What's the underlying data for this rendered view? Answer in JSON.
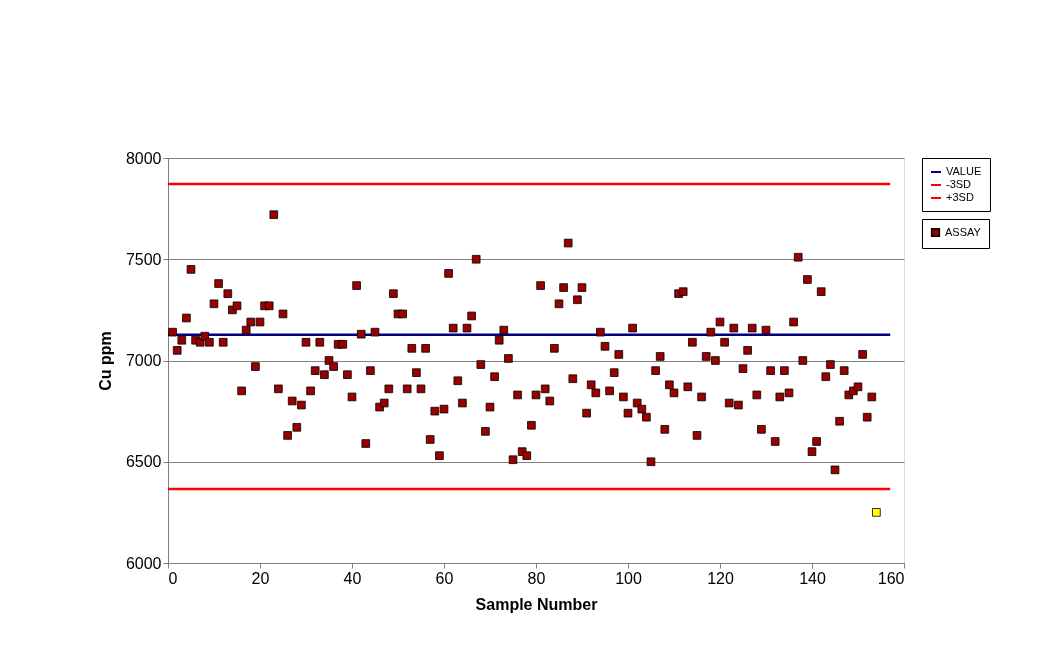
{
  "chart_data": {
    "type": "scatter",
    "xlabel": "Sample Number",
    "ylabel": "Cu ppm",
    "xlim": [
      0,
      160
    ],
    "xticks": [
      0,
      20,
      40,
      60,
      80,
      100,
      120,
      140,
      160
    ],
    "ylim": [
      6000,
      8000
    ],
    "yticks": [
      6000,
      6500,
      7000,
      7500,
      8000
    ],
    "grid": "y",
    "legend": "right",
    "series": [
      {
        "name": "VALUE",
        "type": "line",
        "color": "#000080",
        "x": [
          0,
          157
        ],
        "values": [
          7127,
          7127
        ]
      },
      {
        "name": "-3SD",
        "type": "line",
        "color": "#ff0000",
        "x": [
          0,
          157
        ],
        "values": [
          6366,
          6366
        ]
      },
      {
        "name": "+3SD",
        "type": "line",
        "color": "#ff0000",
        "x": [
          0,
          157
        ],
        "values": [
          7871,
          7871
        ]
      },
      {
        "name": "ASSAY",
        "marker": "square",
        "color": "#990000",
        "x": [
          1,
          2,
          3,
          4,
          5,
          6,
          7,
          8,
          9,
          10,
          11,
          12,
          13,
          14,
          15,
          16,
          17,
          18,
          19,
          20,
          21,
          22,
          23,
          24,
          25,
          26,
          27,
          28,
          29,
          30,
          31,
          32,
          33,
          34,
          35,
          36,
          37,
          38,
          39,
          40,
          41,
          42,
          43,
          44,
          45,
          46,
          47,
          48,
          49,
          50,
          51,
          52,
          53,
          54,
          55,
          56,
          57,
          58,
          59,
          60,
          61,
          62,
          63,
          64,
          65,
          66,
          67,
          68,
          69,
          70,
          71,
          72,
          73,
          74,
          75,
          76,
          77,
          78,
          79,
          80,
          81,
          82,
          83,
          84,
          85,
          86,
          87,
          88,
          89,
          90,
          91,
          92,
          93,
          94,
          95,
          96,
          97,
          98,
          99,
          100,
          101,
          102,
          103,
          104,
          105,
          106,
          107,
          108,
          109,
          110,
          111,
          112,
          113,
          114,
          115,
          116,
          117,
          118,
          119,
          120,
          121,
          122,
          123,
          124,
          125,
          126,
          127,
          128,
          129,
          130,
          131,
          132,
          133,
          134,
          135,
          136,
          137,
          138,
          139,
          140,
          141,
          142,
          143,
          144,
          145,
          146,
          147,
          148,
          149,
          150,
          151,
          152,
          153,
          154
        ],
        "values": [
          7140,
          7050,
          7100,
          7210,
          7450,
          7100,
          7090,
          7120,
          7090,
          7280,
          7380,
          7090,
          7330,
          7250,
          7270,
          6850,
          7150,
          7190,
          6970,
          7190,
          7270,
          7270,
          7720,
          6860,
          7230,
          6630,
          6800,
          6670,
          6780,
          7090,
          6850,
          6950,
          7090,
          6930,
          7000,
          6970,
          7080,
          7080,
          6930,
          6820,
          7370,
          7130,
          6590,
          6950,
          7140,
          6770,
          6790,
          6860,
          7330,
          7230,
          7230,
          6860,
          7060,
          6940,
          6860,
          7060,
          6610,
          6750,
          6530,
          6760,
          7430,
          7160,
          6900,
          6790,
          7160,
          7220,
          7500,
          6980,
          6650,
          6770,
          6920,
          7100,
          7150,
          7010,
          6510,
          6830,
          6550,
          6530,
          6680,
          6830,
          7370,
          6860,
          6800,
          7060,
          7280,
          7360,
          7580,
          6910,
          7300,
          7360,
          6740,
          6880,
          6840,
          7140,
          7070,
          6850,
          6940,
          7030,
          6820,
          6740,
          7160,
          6790,
          6760,
          6720,
          6500,
          6950,
          7020,
          6660,
          6880,
          6840,
          7330,
          7340,
          6870,
          7090,
          6630,
          6820,
          7020,
          7140,
          7000,
          7190,
          7090,
          6790,
          7160,
          6780,
          6960,
          7050,
          7160,
          6830,
          6660,
          7150,
          6950,
          6600,
          6820,
          6950,
          6840,
          7190,
          7510,
          7000,
          7400,
          6550,
          6600,
          7340,
          6920,
          6980,
          6460,
          6700,
          6950,
          6830,
          6850,
          6870,
          7030,
          6720,
          6820,
          6250
        ],
        "colors": [
          "#990000",
          "#990000",
          "#990000",
          "#990000",
          "#990000",
          "#990000",
          "#990000",
          "#990000",
          "#990000",
          "#990000",
          "#990000",
          "#990000",
          "#990000",
          "#990000",
          "#990000",
          "#990000",
          "#990000",
          "#990000",
          "#990000",
          "#990000",
          "#990000",
          "#990000",
          "#990000",
          "#990000",
          "#990000",
          "#990000",
          "#990000",
          "#990000",
          "#990000",
          "#990000",
          "#990000",
          "#990000",
          "#990000",
          "#990000",
          "#990000",
          "#990000",
          "#990000",
          "#990000",
          "#990000",
          "#990000",
          "#990000",
          "#990000",
          "#990000",
          "#990000",
          "#990000",
          "#990000",
          "#990000",
          "#990000",
          "#990000",
          "#990000",
          "#990000",
          "#990000",
          "#990000",
          "#990000",
          "#990000",
          "#990000",
          "#990000",
          "#990000",
          "#990000",
          "#990000",
          "#990000",
          "#990000",
          "#990000",
          "#990000",
          "#990000",
          "#990000",
          "#990000",
          "#990000",
          "#990000",
          "#990000",
          "#990000",
          "#990000",
          "#990000",
          "#990000",
          "#990000",
          "#990000",
          "#990000",
          "#990000",
          "#990000",
          "#990000",
          "#990000",
          "#990000",
          "#990000",
          "#990000",
          "#990000",
          "#990000",
          "#990000",
          "#990000",
          "#990000",
          "#990000",
          "#990000",
          "#990000",
          "#990000",
          "#990000",
          "#990000",
          "#990000",
          "#990000",
          "#990000",
          "#990000",
          "#990000",
          "#990000",
          "#990000",
          "#990000",
          "#990000",
          "#990000",
          "#990000",
          "#990000",
          "#990000",
          "#990000",
          "#990000",
          "#990000",
          "#990000",
          "#990000",
          "#990000",
          "#990000",
          "#990000",
          "#990000",
          "#990000",
          "#990000",
          "#990000",
          "#990000",
          "#990000",
          "#990000",
          "#990000",
          "#990000",
          "#990000",
          "#990000",
          "#990000",
          "#990000",
          "#990000",
          "#990000",
          "#990000",
          "#990000",
          "#990000",
          "#990000",
          "#990000",
          "#990000",
          "#990000",
          "#990000",
          "#990000",
          "#990000",
          "#990000",
          "#990000",
          "#990000",
          "#990000",
          "#990000",
          "#990000",
          "#990000",
          "#990000",
          "#990000",
          "#990000",
          "#990000",
          "#990000",
          "#ffff00"
        ]
      }
    ]
  }
}
